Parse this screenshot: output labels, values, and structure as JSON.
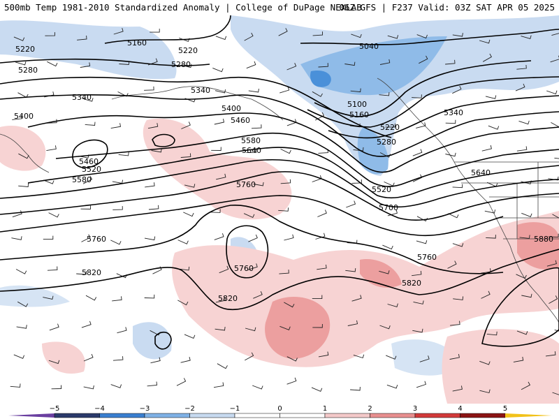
{
  "header": {
    "title_left": "500mb Temp 1981-2010 Standardized Anomaly | College of DuPage NEXLAB",
    "title_right": "06Z GFS | F237 Valid: 03Z SAT APR 05 2025"
  },
  "map": {
    "contour_labels": [
      {
        "id": "c5160-nw",
        "text": "5160"
      },
      {
        "id": "c5220-w",
        "text": "5220"
      },
      {
        "id": "c5220-c",
        "text": "5220"
      },
      {
        "id": "c5280-w",
        "text": "5280"
      },
      {
        "id": "c5280-c",
        "text": "5280"
      },
      {
        "id": "c5340-w",
        "text": "5340"
      },
      {
        "id": "c5340-c",
        "text": "5340"
      },
      {
        "id": "c5400-w",
        "text": "5400"
      },
      {
        "id": "c5400-c",
        "text": "5400"
      },
      {
        "id": "c5460-c",
        "text": "5460"
      },
      {
        "id": "c5460-w",
        "text": "5460"
      },
      {
        "id": "c5520-w",
        "text": "5520"
      },
      {
        "id": "c5580-w",
        "text": "5580"
      },
      {
        "id": "c5580-c",
        "text": "5580"
      },
      {
        "id": "c5640-c",
        "text": "5640"
      },
      {
        "id": "c5760-c",
        "text": "5760"
      },
      {
        "id": "c5700-e",
        "text": "5700"
      },
      {
        "id": "c5520-e",
        "text": "5520"
      },
      {
        "id": "c5040-ne",
        "text": "5040"
      },
      {
        "id": "c5100-ne",
        "text": "5100"
      },
      {
        "id": "c5160-ne",
        "text": "5160"
      },
      {
        "id": "c5220-ne",
        "text": "5220"
      },
      {
        "id": "c5280-ne",
        "text": "5280"
      },
      {
        "id": "c5340-ne",
        "text": "5340"
      },
      {
        "id": "c5640-e",
        "text": "5640"
      },
      {
        "id": "c5760-w",
        "text": "5760"
      },
      {
        "id": "c5760-low",
        "text": "5760"
      },
      {
        "id": "c5760-e",
        "text": "5760"
      },
      {
        "id": "c5820-w",
        "text": "5820"
      },
      {
        "id": "c5820-c",
        "text": "5820"
      },
      {
        "id": "c5820-e",
        "text": "5820"
      },
      {
        "id": "c5880-e",
        "text": "5880"
      }
    ]
  },
  "colorbar": {
    "ticks": [
      "−5",
      "−4",
      "−3",
      "−2",
      "−1",
      "0",
      "1",
      "2",
      "3",
      "4",
      "5"
    ],
    "colors": [
      "#2b3a6b",
      "#3a7fd0",
      "#7fb1e6",
      "#c7daf0",
      "#ffffff",
      "#ffffff",
      "#f4c9c9",
      "#e88f8f",
      "#d23a3a",
      "#8b1414"
    ],
    "left_end_color": "#6a3fa0",
    "right_end_color": "#f2c21a"
  },
  "colors": {
    "contour": "#000000",
    "positive_anomaly": "#f2b6b6",
    "negative_anomaly": "#b7cfee",
    "land_outline": "#333333"
  }
}
